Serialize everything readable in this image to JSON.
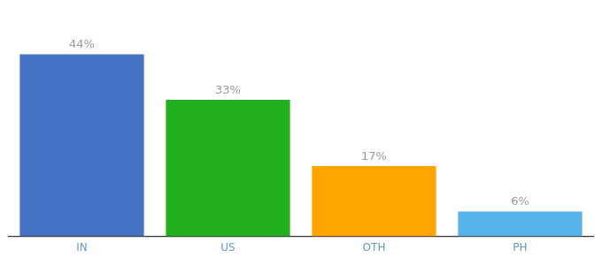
{
  "chart_data": {
    "type": "bar",
    "categories": [
      "IN",
      "US",
      "OTH",
      "PH"
    ],
    "values": [
      44,
      33,
      17,
      6
    ],
    "value_labels": [
      "44%",
      "33%",
      "17%",
      "6%"
    ],
    "colors": [
      "#4472C4",
      "#22B020",
      "#FFA500",
      "#56B4E9"
    ],
    "ylim": [
      0,
      52
    ],
    "grid": false,
    "data_labels": true,
    "tick_labels": "x"
  }
}
